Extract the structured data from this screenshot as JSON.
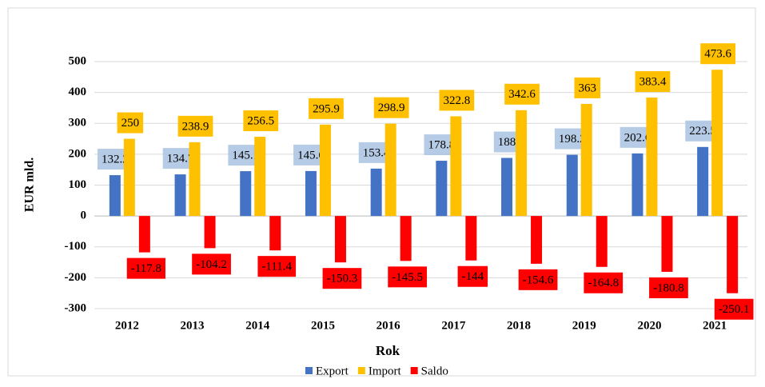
{
  "chart_data": {
    "type": "bar",
    "categories": [
      "2012",
      "2013",
      "2014",
      "2015",
      "2016",
      "2017",
      "2018",
      "2019",
      "2020",
      "2021"
    ],
    "series": [
      {
        "name": "Export",
        "color": "#4472c4",
        "label_bg": "#a9c2e2",
        "values": [
          132.2,
          134.7,
          145.1,
          145.6,
          153.4,
          178.8,
          188,
          198.2,
          202.6,
          223.5
        ]
      },
      {
        "name": "Import",
        "color": "#ffc000",
        "label_bg": "#ffc000",
        "values": [
          250,
          238.9,
          256.5,
          295.9,
          298.9,
          322.8,
          342.6,
          363,
          383.4,
          473.6
        ]
      },
      {
        "name": "Saldo",
        "color": "#ff0000",
        "label_bg": "#ff0000",
        "values": [
          -117.8,
          -104.2,
          -111.4,
          -150.3,
          -145.5,
          -144,
          -154.6,
          -164.8,
          -180.8,
          -250.1
        ]
      }
    ],
    "x_label": "Rok",
    "y_label": "EUR mld.",
    "ylim": [
      -300,
      500
    ],
    "yticks": [
      -300,
      -200,
      -100,
      0,
      100,
      200,
      300,
      400,
      500
    ],
    "grid": true,
    "legend": "bottom"
  }
}
